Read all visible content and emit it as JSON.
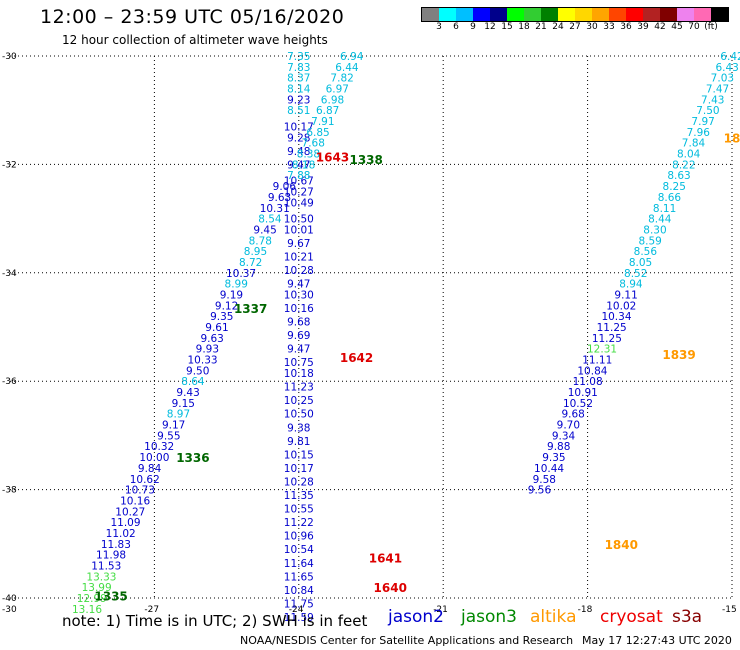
{
  "header": {
    "title": "12:00 – 23:59 UTC 05/16/2020",
    "subtitle": "12 hour collection of altimeter wave heights"
  },
  "legend": {
    "colors": [
      "#808080",
      "#00ffff",
      "#00bfff",
      "#0000ff",
      "#00008b",
      "#00ff00",
      "#32cd32",
      "#008000",
      "#ffff00",
      "#ffd700",
      "#ffa500",
      "#ff4500",
      "#ff0000",
      "#b22222",
      "#800000",
      "#ee82ee",
      "#ff69b4",
      "#000000"
    ],
    "labels": [
      "3",
      "6",
      "9",
      "12",
      "15",
      "18",
      "21",
      "24",
      "27",
      "30",
      "33",
      "36",
      "39",
      "42",
      "45",
      "70",
      "(ft)"
    ]
  },
  "note": {
    "text": "note:  1) Time is in UTC; 2) SWH is in feet",
    "satellites": [
      {
        "name": "jason2",
        "color": "#0000cc"
      },
      {
        "name": "jason3",
        "color": "#008800"
      },
      {
        "name": "altika",
        "color": "#ff9900"
      },
      {
        "name": "cryosat",
        "color": "#ee0000"
      },
      {
        "name": "s3a",
        "color": "#880000"
      }
    ]
  },
  "footer": {
    "left": "NOAA/NESDIS Center for Satellite Applications and Research",
    "right": "May 17 12:27:43 UTC 2020"
  },
  "chart_data": {
    "type": "scatter",
    "xlim": [
      -30,
      -15
    ],
    "ylim": [
      -40,
      -30
    ],
    "x_ticks": [
      "-27",
      "-24",
      "-21",
      "-18",
      "-15"
    ],
    "x_start_label": "-30",
    "y_ticks": [
      "-30",
      "-32",
      "-34",
      "-36",
      "-38",
      "-40"
    ],
    "grid": true,
    "tracks": [
      {
        "satellite": "jason2",
        "points": [
          {
            "x": -24.0,
            "y": -30.0,
            "v": "7.35"
          },
          {
            "x": -24.0,
            "y": -30.2,
            "v": "7.83"
          },
          {
            "x": -24.0,
            "y": -30.4,
            "v": "8.37"
          },
          {
            "x": -24.0,
            "y": -30.6,
            "v": "8.14"
          },
          {
            "x": -24.0,
            "y": -30.8,
            "v": "9.23"
          },
          {
            "x": -24.0,
            "y": -31.0,
            "v": "8.51"
          },
          {
            "x": -24.0,
            "y": -31.3,
            "v": "10.17"
          },
          {
            "x": -24.0,
            "y": -31.5,
            "v": "9.28"
          },
          {
            "x": -24.0,
            "y": -31.75,
            "v": "9.48"
          },
          {
            "x": -24.0,
            "y": -32.0,
            "v": "9.47"
          },
          {
            "x": -24.0,
            "y": -32.3,
            "v": "10.67"
          },
          {
            "x": -24.0,
            "y": -32.5,
            "v": "10.27"
          },
          {
            "x": -24.0,
            "y": -32.7,
            "v": "10.49"
          },
          {
            "x": -24.0,
            "y": -33.0,
            "v": "10.50"
          },
          {
            "x": -24.0,
            "y": -33.2,
            "v": "10.01"
          },
          {
            "x": -24.0,
            "y": -33.45,
            "v": "9.67"
          },
          {
            "x": -24.0,
            "y": -33.7,
            "v": "10.21"
          },
          {
            "x": -24.0,
            "y": -33.95,
            "v": "10.28"
          },
          {
            "x": -24.0,
            "y": -34.2,
            "v": "9.47"
          },
          {
            "x": -24.0,
            "y": -34.4,
            "v": "10.30"
          },
          {
            "x": -24.0,
            "y": -34.65,
            "v": "10.16"
          },
          {
            "x": -24.0,
            "y": -34.9,
            "v": "9.68"
          },
          {
            "x": -24.0,
            "y": -35.15,
            "v": "9.69"
          },
          {
            "x": -24.0,
            "y": -35.4,
            "v": "9.47"
          },
          {
            "x": -24.0,
            "y": -35.65,
            "v": "10.75"
          },
          {
            "x": -24.0,
            "y": -35.85,
            "v": "10.18"
          },
          {
            "x": -24.0,
            "y": -36.1,
            "v": "11.23"
          },
          {
            "x": -24.0,
            "y": -36.35,
            "v": "10.25"
          },
          {
            "x": -24.0,
            "y": -36.6,
            "v": "10.50"
          },
          {
            "x": -24.0,
            "y": -36.85,
            "v": "9.38"
          },
          {
            "x": -24.0,
            "y": -37.1,
            "v": "9.81"
          },
          {
            "x": -24.0,
            "y": -37.35,
            "v": "10.15"
          },
          {
            "x": -24.0,
            "y": -37.6,
            "v": "10.17"
          },
          {
            "x": -24.0,
            "y": -37.85,
            "v": "10.28"
          },
          {
            "x": -24.0,
            "y": -38.1,
            "v": "11.35"
          },
          {
            "x": -24.0,
            "y": -38.35,
            "v": "10.55"
          },
          {
            "x": -24.0,
            "y": -38.6,
            "v": "11.22"
          },
          {
            "x": -24.0,
            "y": -38.85,
            "v": "10.96"
          },
          {
            "x": -24.0,
            "y": -39.1,
            "v": "10.54"
          },
          {
            "x": -24.0,
            "y": -39.35,
            "v": "11.64"
          },
          {
            "x": -24.0,
            "y": -39.6,
            "v": "11.65"
          },
          {
            "x": -24.0,
            "y": -39.85,
            "v": "10.84"
          },
          {
            "x": -24.0,
            "y": -40.1,
            "v": "11.75"
          },
          {
            "x": -24.0,
            "y": -40.35,
            "v": "11.59"
          }
        ]
      },
      {
        "satellite": "jason3",
        "points": [
          {
            "x": -22.9,
            "y": -30.0,
            "v": "6.94"
          },
          {
            "x": -23.0,
            "y": -30.2,
            "v": "6.44"
          },
          {
            "x": -23.1,
            "y": -30.4,
            "v": "7.82"
          },
          {
            "x": -23.2,
            "y": -30.6,
            "v": "6.97"
          },
          {
            "x": -23.3,
            "y": -30.8,
            "v": "6.98"
          },
          {
            "x": -23.4,
            "y": -31.0,
            "v": "6.87"
          },
          {
            "x": -23.5,
            "y": -31.2,
            "v": "7.91"
          },
          {
            "x": -23.6,
            "y": -31.4,
            "v": "6.85"
          },
          {
            "x": -23.7,
            "y": -31.6,
            "v": "7.68"
          },
          {
            "x": -23.8,
            "y": -31.8,
            "v": "8.38"
          },
          {
            "x": -23.9,
            "y": -32.0,
            "v": "8.18"
          },
          {
            "x": -24.0,
            "y": -32.2,
            "v": "7.88"
          },
          {
            "x": -24.3,
            "y": -32.4,
            "v": "9.06"
          },
          {
            "x": -24.4,
            "y": -32.6,
            "v": "9.63"
          },
          {
            "x": -24.5,
            "y": -32.8,
            "v": "10.31"
          },
          {
            "x": -24.6,
            "y": -33.0,
            "v": "8.54"
          },
          {
            "x": -24.7,
            "y": -33.2,
            "v": "9.45"
          },
          {
            "x": -24.8,
            "y": -33.4,
            "v": "8.78"
          },
          {
            "x": -24.9,
            "y": -33.6,
            "v": "8.95"
          },
          {
            "x": -25.0,
            "y": -33.8,
            "v": "8.72"
          },
          {
            "x": -25.2,
            "y": -34.0,
            "v": "10.37"
          },
          {
            "x": -25.3,
            "y": -34.2,
            "v": "8.99"
          },
          {
            "x": -25.4,
            "y": -34.4,
            "v": "9.19"
          },
          {
            "x": -25.5,
            "y": -34.6,
            "v": "9.12"
          },
          {
            "x": -25.6,
            "y": -34.8,
            "v": "9.35"
          },
          {
            "x": -25.7,
            "y": -35.0,
            "v": "9.61"
          },
          {
            "x": -25.8,
            "y": -35.2,
            "v": "9.63"
          },
          {
            "x": -25.9,
            "y": -35.4,
            "v": "9.93"
          },
          {
            "x": -26.0,
            "y": -35.6,
            "v": "10.33"
          },
          {
            "x": -26.1,
            "y": -35.8,
            "v": "9.50"
          },
          {
            "x": -26.2,
            "y": -36.0,
            "v": "8.64"
          },
          {
            "x": -26.3,
            "y": -36.2,
            "v": "9.43"
          },
          {
            "x": -26.4,
            "y": -36.4,
            "v": "9.15"
          },
          {
            "x": -26.5,
            "y": -36.6,
            "v": "8.97"
          },
          {
            "x": -26.6,
            "y": -36.8,
            "v": "9.17"
          },
          {
            "x": -26.7,
            "y": -37.0,
            "v": "9.55"
          },
          {
            "x": -26.9,
            "y": -37.2,
            "v": "10.32"
          },
          {
            "x": -27.0,
            "y": -37.4,
            "v": "10.00"
          },
          {
            "x": -27.1,
            "y": -37.6,
            "v": "9.84"
          },
          {
            "x": -27.2,
            "y": -37.8,
            "v": "10.62"
          },
          {
            "x": -27.3,
            "y": -38.0,
            "v": "10.73"
          },
          {
            "x": -27.4,
            "y": -38.2,
            "v": "10.16"
          },
          {
            "x": -27.5,
            "y": -38.4,
            "v": "10.27"
          },
          {
            "x": -27.6,
            "y": -38.6,
            "v": "11.09"
          },
          {
            "x": -27.7,
            "y": -38.8,
            "v": "11.02"
          },
          {
            "x": -27.8,
            "y": -39.0,
            "v": "11.83"
          },
          {
            "x": -27.9,
            "y": -39.2,
            "v": "11.98"
          },
          {
            "x": -28.0,
            "y": -39.4,
            "v": "11.53"
          },
          {
            "x": -28.1,
            "y": -39.6,
            "v": "13.33"
          },
          {
            "x": -28.2,
            "y": -39.8,
            "v": "13.99"
          },
          {
            "x": -28.3,
            "y": -40.0,
            "v": "12.99"
          },
          {
            "x": -28.4,
            "y": -40.2,
            "v": "13.16"
          }
        ]
      },
      {
        "satellite": "altika",
        "points": [
          {
            "x": -15.0,
            "y": -30.0,
            "v": "6.42"
          },
          {
            "x": -15.1,
            "y": -30.2,
            "v": "6.43"
          },
          {
            "x": -15.2,
            "y": -30.4,
            "v": "7.03"
          },
          {
            "x": -15.3,
            "y": -30.6,
            "v": "7.47"
          },
          {
            "x": -15.4,
            "y": -30.8,
            "v": "7.43"
          },
          {
            "x": -15.5,
            "y": -31.0,
            "v": "7.50"
          },
          {
            "x": -15.6,
            "y": -31.2,
            "v": "7.97"
          },
          {
            "x": -15.7,
            "y": -31.4,
            "v": "7.96"
          },
          {
            "x": -15.8,
            "y": -31.6,
            "v": "7.84"
          },
          {
            "x": -15.9,
            "y": -31.8,
            "v": "8.04"
          },
          {
            "x": -16.0,
            "y": -32.0,
            "v": "8.22"
          },
          {
            "x": -16.1,
            "y": -32.2,
            "v": "8.63"
          },
          {
            "x": -16.2,
            "y": -32.4,
            "v": "8.25"
          },
          {
            "x": -16.3,
            "y": -32.6,
            "v": "8.66"
          },
          {
            "x": -16.4,
            "y": -32.8,
            "v": "8.11"
          },
          {
            "x": -16.5,
            "y": -33.0,
            "v": "8.44"
          },
          {
            "x": -16.6,
            "y": -33.2,
            "v": "8.30"
          },
          {
            "x": -16.7,
            "y": -33.4,
            "v": "8.59"
          },
          {
            "x": -16.8,
            "y": -33.6,
            "v": "8.56"
          },
          {
            "x": -16.9,
            "y": -33.8,
            "v": "8.05"
          },
          {
            "x": -17.0,
            "y": -34.0,
            "v": "8.52"
          },
          {
            "x": -17.1,
            "y": -34.2,
            "v": "8.94"
          },
          {
            "x": -17.2,
            "y": -34.4,
            "v": "9.11"
          },
          {
            "x": -17.3,
            "y": -34.6,
            "v": "10.02"
          },
          {
            "x": -17.4,
            "y": -34.8,
            "v": "10.34"
          },
          {
            "x": -17.5,
            "y": -35.0,
            "v": "11.25"
          },
          {
            "x": -17.6,
            "y": -35.2,
            "v": "11.25"
          },
          {
            "x": -17.7,
            "y": -35.4,
            "v": "12.31"
          },
          {
            "x": -17.8,
            "y": -35.6,
            "v": "11.11"
          },
          {
            "x": -17.9,
            "y": -35.8,
            "v": "10.84"
          },
          {
            "x": -18.0,
            "y": -36.0,
            "v": "11.08"
          },
          {
            "x": -18.1,
            "y": -36.2,
            "v": "10.91"
          },
          {
            "x": -18.2,
            "y": -36.4,
            "v": "10.52"
          },
          {
            "x": -18.3,
            "y": -36.6,
            "v": "9.68"
          },
          {
            "x": -18.4,
            "y": -36.8,
            "v": "9.70"
          },
          {
            "x": -18.5,
            "y": -37.0,
            "v": "9.34"
          },
          {
            "x": -18.6,
            "y": -37.2,
            "v": "9.88"
          },
          {
            "x": -18.7,
            "y": -37.4,
            "v": "9.35"
          },
          {
            "x": -18.8,
            "y": -37.6,
            "v": "10.44"
          },
          {
            "x": -18.9,
            "y": -37.8,
            "v": "9.58"
          },
          {
            "x": -19.0,
            "y": -38.0,
            "v": "9.56"
          }
        ]
      }
    ],
    "time_labels": [
      {
        "text": "1643",
        "x": -23.3,
        "y": -31.85,
        "color": "#dd0000"
      },
      {
        "text": "1338",
        "x": -22.6,
        "y": -31.9,
        "color": "#006600"
      },
      {
        "text": "1337",
        "x": -25.0,
        "y": -34.65,
        "color": "#006600"
      },
      {
        "text": "1642",
        "x": -22.8,
        "y": -35.55,
        "color": "#dd0000"
      },
      {
        "text": "1336",
        "x": -26.2,
        "y": -37.4,
        "color": "#006600"
      },
      {
        "text": "1641",
        "x": -22.2,
        "y": -39.25,
        "color": "#dd0000"
      },
      {
        "text": "1640",
        "x": -22.1,
        "y": -39.8,
        "color": "#dd0000"
      },
      {
        "text": "1335",
        "x": -27.9,
        "y": -39.95,
        "color": "#006600"
      },
      {
        "text": "18",
        "x": -15.0,
        "y": -31.5,
        "color": "#ff9900"
      },
      {
        "text": "1839",
        "x": -16.1,
        "y": -35.5,
        "color": "#ff9900"
      },
      {
        "text": "1840",
        "x": -17.3,
        "y": -39.0,
        "color": "#ff9900"
      }
    ]
  }
}
